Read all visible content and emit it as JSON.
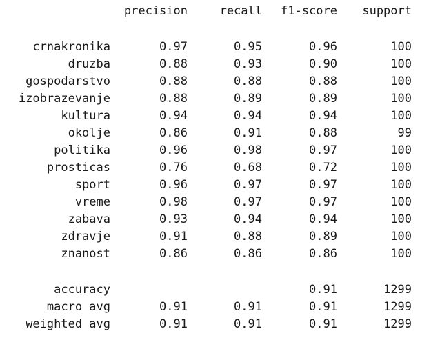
{
  "header": {
    "precision": "precision",
    "recall": "recall",
    "f1": "f1-score",
    "support": "support"
  },
  "rows": [
    {
      "label": "crnakronika",
      "precision": "0.97",
      "recall": "0.95",
      "f1": "0.96",
      "support": "100"
    },
    {
      "label": "druzba",
      "precision": "0.88",
      "recall": "0.93",
      "f1": "0.90",
      "support": "100"
    },
    {
      "label": "gospodarstvo",
      "precision": "0.88",
      "recall": "0.88",
      "f1": "0.88",
      "support": "100"
    },
    {
      "label": "izobrazevanje",
      "precision": "0.88",
      "recall": "0.89",
      "f1": "0.89",
      "support": "100"
    },
    {
      "label": "kultura",
      "precision": "0.94",
      "recall": "0.94",
      "f1": "0.94",
      "support": "100"
    },
    {
      "label": "okolje",
      "precision": "0.86",
      "recall": "0.91",
      "f1": "0.88",
      "support": "99"
    },
    {
      "label": "politika",
      "precision": "0.96",
      "recall": "0.98",
      "f1": "0.97",
      "support": "100"
    },
    {
      "label": "prosticas",
      "precision": "0.76",
      "recall": "0.68",
      "f1": "0.72",
      "support": "100"
    },
    {
      "label": "sport",
      "precision": "0.96",
      "recall": "0.97",
      "f1": "0.97",
      "support": "100"
    },
    {
      "label": "vreme",
      "precision": "0.98",
      "recall": "0.97",
      "f1": "0.97",
      "support": "100"
    },
    {
      "label": "zabava",
      "precision": "0.93",
      "recall": "0.94",
      "f1": "0.94",
      "support": "100"
    },
    {
      "label": "zdravje",
      "precision": "0.91",
      "recall": "0.88",
      "f1": "0.89",
      "support": "100"
    },
    {
      "label": "znanost",
      "precision": "0.86",
      "recall": "0.86",
      "f1": "0.86",
      "support": "100"
    }
  ],
  "summary": [
    {
      "label": "accuracy",
      "precision": "",
      "recall": "",
      "f1": "0.91",
      "support": "1299"
    },
    {
      "label": "macro avg",
      "precision": "0.91",
      "recall": "0.91",
      "f1": "0.91",
      "support": "1299"
    },
    {
      "label": "weighted avg",
      "precision": "0.91",
      "recall": "0.91",
      "f1": "0.91",
      "support": "1299"
    }
  ]
}
